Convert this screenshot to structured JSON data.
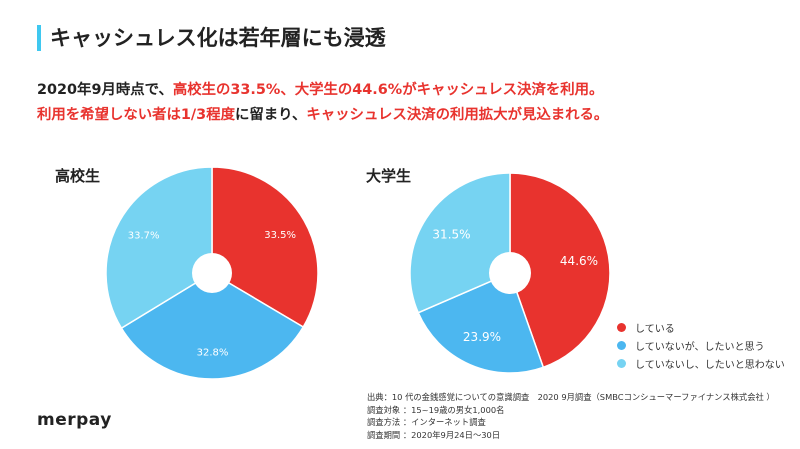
{
  "title": "キャッシュレス化は若年層にも浸透",
  "lead": {
    "line1": [
      {
        "text": "2020年9月時点で、",
        "color": "dark"
      },
      {
        "text": "高校生の33.5%、大学生の44.6%",
        "color": "red"
      },
      {
        "text": "がキャッシュレス決済を利用。",
        "color": "red"
      }
    ],
    "line2": [
      {
        "text": "利用を希望しない者は1/3程度",
        "color": "red"
      },
      {
        "text": "に留まり、",
        "color": "dark"
      },
      {
        "text": "キャッシュレス決済の利用拡大が見込まれる。",
        "color": "red"
      }
    ]
  },
  "colors": {
    "accent_bar": "#3FC8F0",
    "using": "#E8332E",
    "want": "#4CB7F0",
    "not_want": "#76D3F2"
  },
  "chart_data": [
    {
      "type": "pie",
      "title": "高校生",
      "slices": [
        {
          "label": "している",
          "value": 33.5,
          "display": "33.5%"
        },
        {
          "label": "していないが、したいと思う",
          "value": 32.8,
          "display": "32.8%"
        },
        {
          "label": "していないし、したいと思わない",
          "value": 33.7,
          "display": "33.7%"
        }
      ]
    },
    {
      "type": "pie",
      "title": "大学生",
      "slices": [
        {
          "label": "している",
          "value": 44.6,
          "display": "44.6%"
        },
        {
          "label": "していないが、したいと思う",
          "value": 23.9,
          "display": "23.9%"
        },
        {
          "label": "していないし、したいと思わない",
          "value": 31.5,
          "display": "31.5%"
        }
      ]
    }
  ],
  "legend": [
    {
      "label": "している",
      "color": "#E8332E"
    },
    {
      "label": "していないが、したいと思う",
      "color": "#4CB7F0"
    },
    {
      "label": "していないし、したいと思わない",
      "color": "#76D3F2"
    }
  ],
  "source": [
    "出典：10 代の金銭感覚についての意識調査　2020 9月調査（SMBCコンシューマーファイナンス株式会社 ）",
    "調査対象 ：15~19歳の男女1,000名",
    "調査方法 ：インターネット調査",
    "調査期間 ：2020年9月24日～30日"
  ],
  "logo": "merpay"
}
